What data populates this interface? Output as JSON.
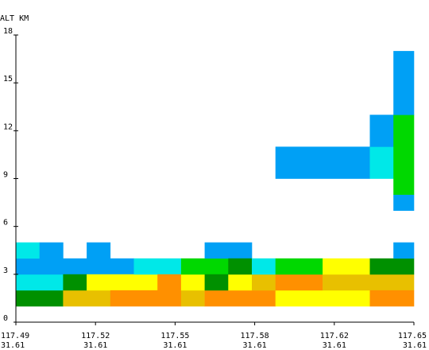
{
  "chart_data": {
    "type": "heatmap",
    "title": "",
    "ylabel": "ALT KM",
    "xlabel": "",
    "ylim": [
      0,
      18
    ],
    "yticks": [
      0,
      3,
      6,
      9,
      12,
      15,
      18
    ],
    "ytick_labels": [
      "0",
      "3",
      "6",
      "9",
      "12",
      "15",
      "18"
    ],
    "xticks": [
      {
        "lon": "117.49",
        "lat": "31.61"
      },
      {
        "lon": "117.52",
        "lat": "31.61"
      },
      {
        "lon": "117.55",
        "lat": "31.61"
      },
      {
        "lon": "117.58",
        "lat": "31.61"
      },
      {
        "lon": "117.62",
        "lat": "31.61"
      },
      {
        "lon": "117.65",
        "lat": "31.61"
      }
    ],
    "color_classes": {
      "blue": "#00a0f5",
      "cyan": "#00e8e8",
      "green": "#00d800",
      "dark_green": "#009000",
      "yellow": "#ffff00",
      "gold": "#e8c000",
      "orange": "#ff9000"
    },
    "column_edges": [
      0,
      1,
      2,
      3,
      4,
      5,
      6,
      7,
      8,
      9,
      10,
      11,
      12,
      13,
      14,
      15,
      16,
      17
    ],
    "cells": [
      {
        "col": [
          0,
          2
        ],
        "alt": [
          1,
          2
        ],
        "color": "dark_green"
      },
      {
        "col": [
          0,
          2
        ],
        "alt": [
          2,
          3
        ],
        "color": "cyan"
      },
      {
        "col": [
          0,
          5
        ],
        "alt": [
          3,
          4
        ],
        "color": "blue"
      },
      {
        "col": [
          0,
          1
        ],
        "alt": [
          4,
          5
        ],
        "color": "cyan"
      },
      {
        "col": [
          1,
          2
        ],
        "alt": [
          4,
          5
        ],
        "color": "blue"
      },
      {
        "col": [
          2,
          4
        ],
        "alt": [
          1,
          2
        ],
        "color": "gold"
      },
      {
        "col": [
          2,
          3
        ],
        "alt": [
          2,
          3
        ],
        "color": "dark_green"
      },
      {
        "col": [
          3,
          6
        ],
        "alt": [
          2,
          3
        ],
        "color": "yellow"
      },
      {
        "col": [
          3,
          4
        ],
        "alt": [
          4,
          5
        ],
        "color": "blue"
      },
      {
        "col": [
          4,
          7
        ],
        "alt": [
          1,
          2
        ],
        "color": "orange"
      },
      {
        "col": [
          5,
          7
        ],
        "alt": [
          3,
          4
        ],
        "color": "cyan"
      },
      {
        "col": [
          6,
          7
        ],
        "alt": [
          2,
          3
        ],
        "color": "orange"
      },
      {
        "col": [
          7,
          8
        ],
        "alt": [
          1,
          2
        ],
        "color": "gold"
      },
      {
        "col": [
          7,
          8
        ],
        "alt": [
          2,
          3
        ],
        "color": "yellow"
      },
      {
        "col": [
          7,
          9
        ],
        "alt": [
          3,
          4
        ],
        "color": "green"
      },
      {
        "col": [
          8,
          11
        ],
        "alt": [
          1,
          2
        ],
        "color": "orange"
      },
      {
        "col": [
          8,
          9
        ],
        "alt": [
          2,
          3
        ],
        "color": "dark_green"
      },
      {
        "col": [
          8,
          10
        ],
        "alt": [
          4,
          5
        ],
        "color": "blue"
      },
      {
        "col": [
          9,
          10
        ],
        "alt": [
          2,
          3
        ],
        "color": "yellow"
      },
      {
        "col": [
          9,
          10
        ],
        "alt": [
          3,
          4
        ],
        "color": "dark_green"
      },
      {
        "col": [
          10,
          11
        ],
        "alt": [
          2,
          3
        ],
        "color": "gold"
      },
      {
        "col": [
          10,
          11
        ],
        "alt": [
          3,
          4
        ],
        "color": "cyan"
      },
      {
        "col": [
          11,
          15
        ],
        "alt": [
          1,
          2
        ],
        "color": "yellow"
      },
      {
        "col": [
          11,
          13
        ],
        "alt": [
          2,
          3
        ],
        "color": "orange"
      },
      {
        "col": [
          11,
          13
        ],
        "alt": [
          3,
          4
        ],
        "color": "green"
      },
      {
        "col": [
          11,
          15
        ],
        "alt": [
          9,
          11
        ],
        "color": "blue"
      },
      {
        "col": [
          13,
          17
        ],
        "alt": [
          2,
          3
        ],
        "color": "gold"
      },
      {
        "col": [
          13,
          15
        ],
        "alt": [
          3,
          4
        ],
        "color": "yellow"
      },
      {
        "col": [
          15,
          17
        ],
        "alt": [
          1,
          2
        ],
        "color": "orange"
      },
      {
        "col": [
          15,
          17
        ],
        "alt": [
          3,
          4
        ],
        "color": "dark_green"
      },
      {
        "col": [
          15,
          16
        ],
        "alt": [
          9,
          11
        ],
        "color": "cyan"
      },
      {
        "col": [
          15,
          16
        ],
        "alt": [
          11,
          13
        ],
        "color": "blue"
      },
      {
        "col": [
          16,
          17
        ],
        "alt": [
          4,
          5
        ],
        "color": "blue"
      },
      {
        "col": [
          16,
          17
        ],
        "alt": [
          7,
          8
        ],
        "color": "blue"
      },
      {
        "col": [
          16,
          17
        ],
        "alt": [
          8,
          13
        ],
        "color": "green"
      },
      {
        "col": [
          16,
          17
        ],
        "alt": [
          13,
          17
        ],
        "color": "blue"
      }
    ]
  }
}
